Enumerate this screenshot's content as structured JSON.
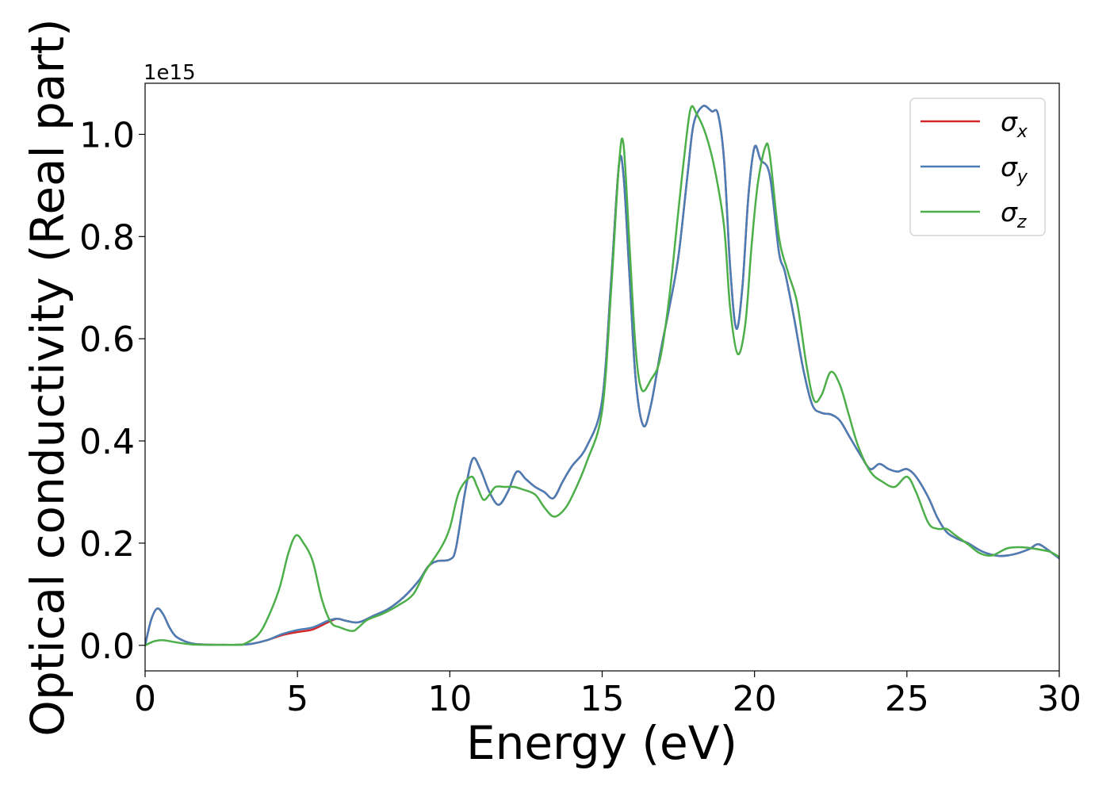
{
  "chart_data": {
    "type": "line",
    "xlabel": "Energy (eV)",
    "ylabel": "Optical conductivity (Real part)",
    "offset_label": "1e15",
    "xlim": [
      0,
      30
    ],
    "ylim": [
      -0.05,
      1.1
    ],
    "xticks": [
      0,
      5,
      10,
      15,
      20,
      25,
      30
    ],
    "xtick_labels": [
      "0",
      "5",
      "10",
      "15",
      "20",
      "25",
      "30"
    ],
    "yticks": [
      0.0,
      0.2,
      0.4,
      0.6,
      0.8,
      1.0
    ],
    "ytick_labels": [
      "0.0",
      "0.2",
      "0.4",
      "0.6",
      "0.8",
      "1.0"
    ],
    "grid": false,
    "legend": "top-right",
    "series": [
      {
        "name": "σx",
        "sym": "σ",
        "sub": "x",
        "color": "#d62728",
        "points": [
          [
            0,
            0.0
          ],
          [
            0.2,
            0.05
          ],
          [
            0.4,
            0.072
          ],
          [
            0.6,
            0.06
          ],
          [
            0.8,
            0.035
          ],
          [
            1.0,
            0.018
          ],
          [
            1.3,
            0.008
          ],
          [
            1.6,
            0.003
          ],
          [
            2,
            0.0015
          ],
          [
            2.5,
            0.001
          ],
          [
            3,
            0.001
          ],
          [
            3.5,
            0.003
          ],
          [
            4,
            0.01
          ],
          [
            4.5,
            0.02
          ],
          [
            5,
            0.026
          ],
          [
            5.5,
            0.031
          ],
          [
            6,
            0.045
          ],
          [
            6.3,
            0.052
          ],
          [
            6.6,
            0.048
          ],
          [
            7,
            0.045
          ],
          [
            7.5,
            0.058
          ],
          [
            8,
            0.072
          ],
          [
            8.5,
            0.095
          ],
          [
            9,
            0.128
          ],
          [
            9.3,
            0.155
          ],
          [
            9.6,
            0.165
          ],
          [
            10,
            0.168
          ],
          [
            10.2,
            0.19
          ],
          [
            10.5,
            0.3
          ],
          [
            10.75,
            0.365
          ],
          [
            11,
            0.345
          ],
          [
            11.3,
            0.3
          ],
          [
            11.6,
            0.275
          ],
          [
            11.9,
            0.3
          ],
          [
            12.2,
            0.34
          ],
          [
            12.5,
            0.325
          ],
          [
            12.8,
            0.31
          ],
          [
            13.1,
            0.3
          ],
          [
            13.4,
            0.288
          ],
          [
            13.7,
            0.32
          ],
          [
            14,
            0.35
          ],
          [
            14.5,
            0.39
          ],
          [
            15,
            0.48
          ],
          [
            15.3,
            0.72
          ],
          [
            15.55,
            0.94
          ],
          [
            15.7,
            0.92
          ],
          [
            15.9,
            0.72
          ],
          [
            16.1,
            0.52
          ],
          [
            16.35,
            0.43
          ],
          [
            16.6,
            0.47
          ],
          [
            16.9,
            0.57
          ],
          [
            17.2,
            0.66
          ],
          [
            17.5,
            0.76
          ],
          [
            17.8,
            0.92
          ],
          [
            18,
            1.02
          ],
          [
            18.3,
            1.055
          ],
          [
            18.6,
            1.045
          ],
          [
            18.8,
            1.04
          ],
          [
            19.0,
            0.95
          ],
          [
            19.2,
            0.74
          ],
          [
            19.4,
            0.62
          ],
          [
            19.6,
            0.7
          ],
          [
            19.8,
            0.88
          ],
          [
            20.0,
            0.975
          ],
          [
            20.2,
            0.95
          ],
          [
            20.5,
            0.92
          ],
          [
            20.8,
            0.77
          ],
          [
            21.0,
            0.73
          ],
          [
            21.3,
            0.64
          ],
          [
            21.6,
            0.54
          ],
          [
            21.9,
            0.47
          ],
          [
            22.2,
            0.455
          ],
          [
            22.5,
            0.452
          ],
          [
            22.8,
            0.44
          ],
          [
            23.1,
            0.41
          ],
          [
            23.5,
            0.37
          ],
          [
            23.8,
            0.345
          ],
          [
            24.1,
            0.355
          ],
          [
            24.4,
            0.345
          ],
          [
            24.7,
            0.34
          ],
          [
            25,
            0.345
          ],
          [
            25.3,
            0.33
          ],
          [
            25.7,
            0.29
          ],
          [
            26,
            0.25
          ],
          [
            26.3,
            0.222
          ],
          [
            26.6,
            0.21
          ],
          [
            27,
            0.2
          ],
          [
            27.5,
            0.183
          ],
          [
            28,
            0.175
          ],
          [
            28.5,
            0.178
          ],
          [
            29,
            0.188
          ],
          [
            29.3,
            0.198
          ],
          [
            29.6,
            0.188
          ],
          [
            30,
            0.17
          ]
        ]
      },
      {
        "name": "σy",
        "sym": "σ",
        "sub": "y",
        "color": "#4a7db5",
        "points": [
          [
            0,
            0.0
          ],
          [
            0.2,
            0.05
          ],
          [
            0.4,
            0.072
          ],
          [
            0.6,
            0.06
          ],
          [
            0.8,
            0.035
          ],
          [
            1.0,
            0.018
          ],
          [
            1.3,
            0.008
          ],
          [
            1.6,
            0.003
          ],
          [
            2,
            0.0015
          ],
          [
            2.5,
            0.001
          ],
          [
            3,
            0.001
          ],
          [
            3.5,
            0.003
          ],
          [
            4,
            0.01
          ],
          [
            4.5,
            0.022
          ],
          [
            5,
            0.03
          ],
          [
            5.5,
            0.035
          ],
          [
            6,
            0.048
          ],
          [
            6.3,
            0.052
          ],
          [
            6.6,
            0.048
          ],
          [
            7,
            0.045
          ],
          [
            7.5,
            0.058
          ],
          [
            8,
            0.072
          ],
          [
            8.5,
            0.095
          ],
          [
            9,
            0.128
          ],
          [
            9.3,
            0.155
          ],
          [
            9.6,
            0.165
          ],
          [
            10,
            0.168
          ],
          [
            10.2,
            0.19
          ],
          [
            10.5,
            0.3
          ],
          [
            10.75,
            0.365
          ],
          [
            11,
            0.345
          ],
          [
            11.3,
            0.3
          ],
          [
            11.6,
            0.275
          ],
          [
            11.9,
            0.3
          ],
          [
            12.2,
            0.34
          ],
          [
            12.5,
            0.325
          ],
          [
            12.8,
            0.31
          ],
          [
            13.1,
            0.3
          ],
          [
            13.4,
            0.288
          ],
          [
            13.7,
            0.32
          ],
          [
            14,
            0.35
          ],
          [
            14.5,
            0.39
          ],
          [
            15,
            0.48
          ],
          [
            15.3,
            0.72
          ],
          [
            15.55,
            0.94
          ],
          [
            15.7,
            0.92
          ],
          [
            15.9,
            0.72
          ],
          [
            16.1,
            0.52
          ],
          [
            16.35,
            0.43
          ],
          [
            16.6,
            0.47
          ],
          [
            16.9,
            0.57
          ],
          [
            17.2,
            0.66
          ],
          [
            17.5,
            0.76
          ],
          [
            17.8,
            0.92
          ],
          [
            18,
            1.02
          ],
          [
            18.3,
            1.055
          ],
          [
            18.6,
            1.045
          ],
          [
            18.8,
            1.04
          ],
          [
            19.0,
            0.95
          ],
          [
            19.2,
            0.74
          ],
          [
            19.4,
            0.62
          ],
          [
            19.6,
            0.7
          ],
          [
            19.8,
            0.88
          ],
          [
            20.0,
            0.975
          ],
          [
            20.2,
            0.95
          ],
          [
            20.5,
            0.92
          ],
          [
            20.8,
            0.77
          ],
          [
            21.0,
            0.73
          ],
          [
            21.3,
            0.64
          ],
          [
            21.6,
            0.54
          ],
          [
            21.9,
            0.47
          ],
          [
            22.2,
            0.455
          ],
          [
            22.5,
            0.452
          ],
          [
            22.8,
            0.44
          ],
          [
            23.1,
            0.41
          ],
          [
            23.5,
            0.37
          ],
          [
            23.8,
            0.345
          ],
          [
            24.1,
            0.355
          ],
          [
            24.4,
            0.345
          ],
          [
            24.7,
            0.34
          ],
          [
            25,
            0.345
          ],
          [
            25.3,
            0.33
          ],
          [
            25.7,
            0.29
          ],
          [
            26,
            0.25
          ],
          [
            26.3,
            0.222
          ],
          [
            26.6,
            0.21
          ],
          [
            27,
            0.2
          ],
          [
            27.5,
            0.183
          ],
          [
            28,
            0.175
          ],
          [
            28.5,
            0.178
          ],
          [
            29,
            0.188
          ],
          [
            29.3,
            0.198
          ],
          [
            29.6,
            0.188
          ],
          [
            30,
            0.17
          ]
        ]
      },
      {
        "name": "σz",
        "sym": "σ",
        "sub": "z",
        "color": "#4daf4a",
        "points": [
          [
            0,
            0.0
          ],
          [
            0.3,
            0.008
          ],
          [
            0.6,
            0.01
          ],
          [
            1.0,
            0.006
          ],
          [
            1.5,
            0.002
          ],
          [
            2,
            0.001
          ],
          [
            3,
            0.001
          ],
          [
            3.3,
            0.004
          ],
          [
            3.7,
            0.02
          ],
          [
            4,
            0.05
          ],
          [
            4.4,
            0.11
          ],
          [
            4.7,
            0.18
          ],
          [
            4.95,
            0.215
          ],
          [
            5.2,
            0.2
          ],
          [
            5.5,
            0.165
          ],
          [
            5.8,
            0.09
          ],
          [
            6.1,
            0.045
          ],
          [
            6.4,
            0.035
          ],
          [
            6.8,
            0.028
          ],
          [
            7,
            0.035
          ],
          [
            7.3,
            0.05
          ],
          [
            7.8,
            0.062
          ],
          [
            8.3,
            0.078
          ],
          [
            8.8,
            0.1
          ],
          [
            9.2,
            0.145
          ],
          [
            9.7,
            0.19
          ],
          [
            10,
            0.23
          ],
          [
            10.3,
            0.3
          ],
          [
            10.7,
            0.33
          ],
          [
            10.9,
            0.31
          ],
          [
            11.1,
            0.285
          ],
          [
            11.3,
            0.295
          ],
          [
            11.5,
            0.31
          ],
          [
            11.8,
            0.31
          ],
          [
            12.1,
            0.31
          ],
          [
            12.4,
            0.305
          ],
          [
            12.8,
            0.295
          ],
          [
            13.1,
            0.27
          ],
          [
            13.4,
            0.252
          ],
          [
            13.7,
            0.262
          ],
          [
            14,
            0.29
          ],
          [
            14.5,
            0.36
          ],
          [
            15,
            0.46
          ],
          [
            15.3,
            0.7
          ],
          [
            15.55,
            0.94
          ],
          [
            15.7,
            0.98
          ],
          [
            15.9,
            0.78
          ],
          [
            16.1,
            0.58
          ],
          [
            16.3,
            0.5
          ],
          [
            16.6,
            0.52
          ],
          [
            16.9,
            0.56
          ],
          [
            17.2,
            0.68
          ],
          [
            17.5,
            0.85
          ],
          [
            17.7,
            0.96
          ],
          [
            17.9,
            1.05
          ],
          [
            18.1,
            1.04
          ],
          [
            18.4,
            1.0
          ],
          [
            18.7,
            0.93
          ],
          [
            19.0,
            0.82
          ],
          [
            19.2,
            0.66
          ],
          [
            19.45,
            0.57
          ],
          [
            19.7,
            0.63
          ],
          [
            19.9,
            0.78
          ],
          [
            20.1,
            0.9
          ],
          [
            20.35,
            0.975
          ],
          [
            20.5,
            0.96
          ],
          [
            20.8,
            0.8
          ],
          [
            21.1,
            0.73
          ],
          [
            21.4,
            0.67
          ],
          [
            21.7,
            0.55
          ],
          [
            21.95,
            0.48
          ],
          [
            22.2,
            0.49
          ],
          [
            22.5,
            0.535
          ],
          [
            22.8,
            0.51
          ],
          [
            23.1,
            0.45
          ],
          [
            23.4,
            0.39
          ],
          [
            23.8,
            0.34
          ],
          [
            24.2,
            0.32
          ],
          [
            24.6,
            0.31
          ],
          [
            25,
            0.33
          ],
          [
            25.3,
            0.3
          ],
          [
            25.7,
            0.24
          ],
          [
            26,
            0.228
          ],
          [
            26.3,
            0.228
          ],
          [
            26.6,
            0.215
          ],
          [
            27,
            0.198
          ],
          [
            27.4,
            0.18
          ],
          [
            27.8,
            0.176
          ],
          [
            28.3,
            0.19
          ],
          [
            28.8,
            0.192
          ],
          [
            29.3,
            0.188
          ],
          [
            29.7,
            0.183
          ],
          [
            30,
            0.173
          ]
        ]
      }
    ]
  }
}
